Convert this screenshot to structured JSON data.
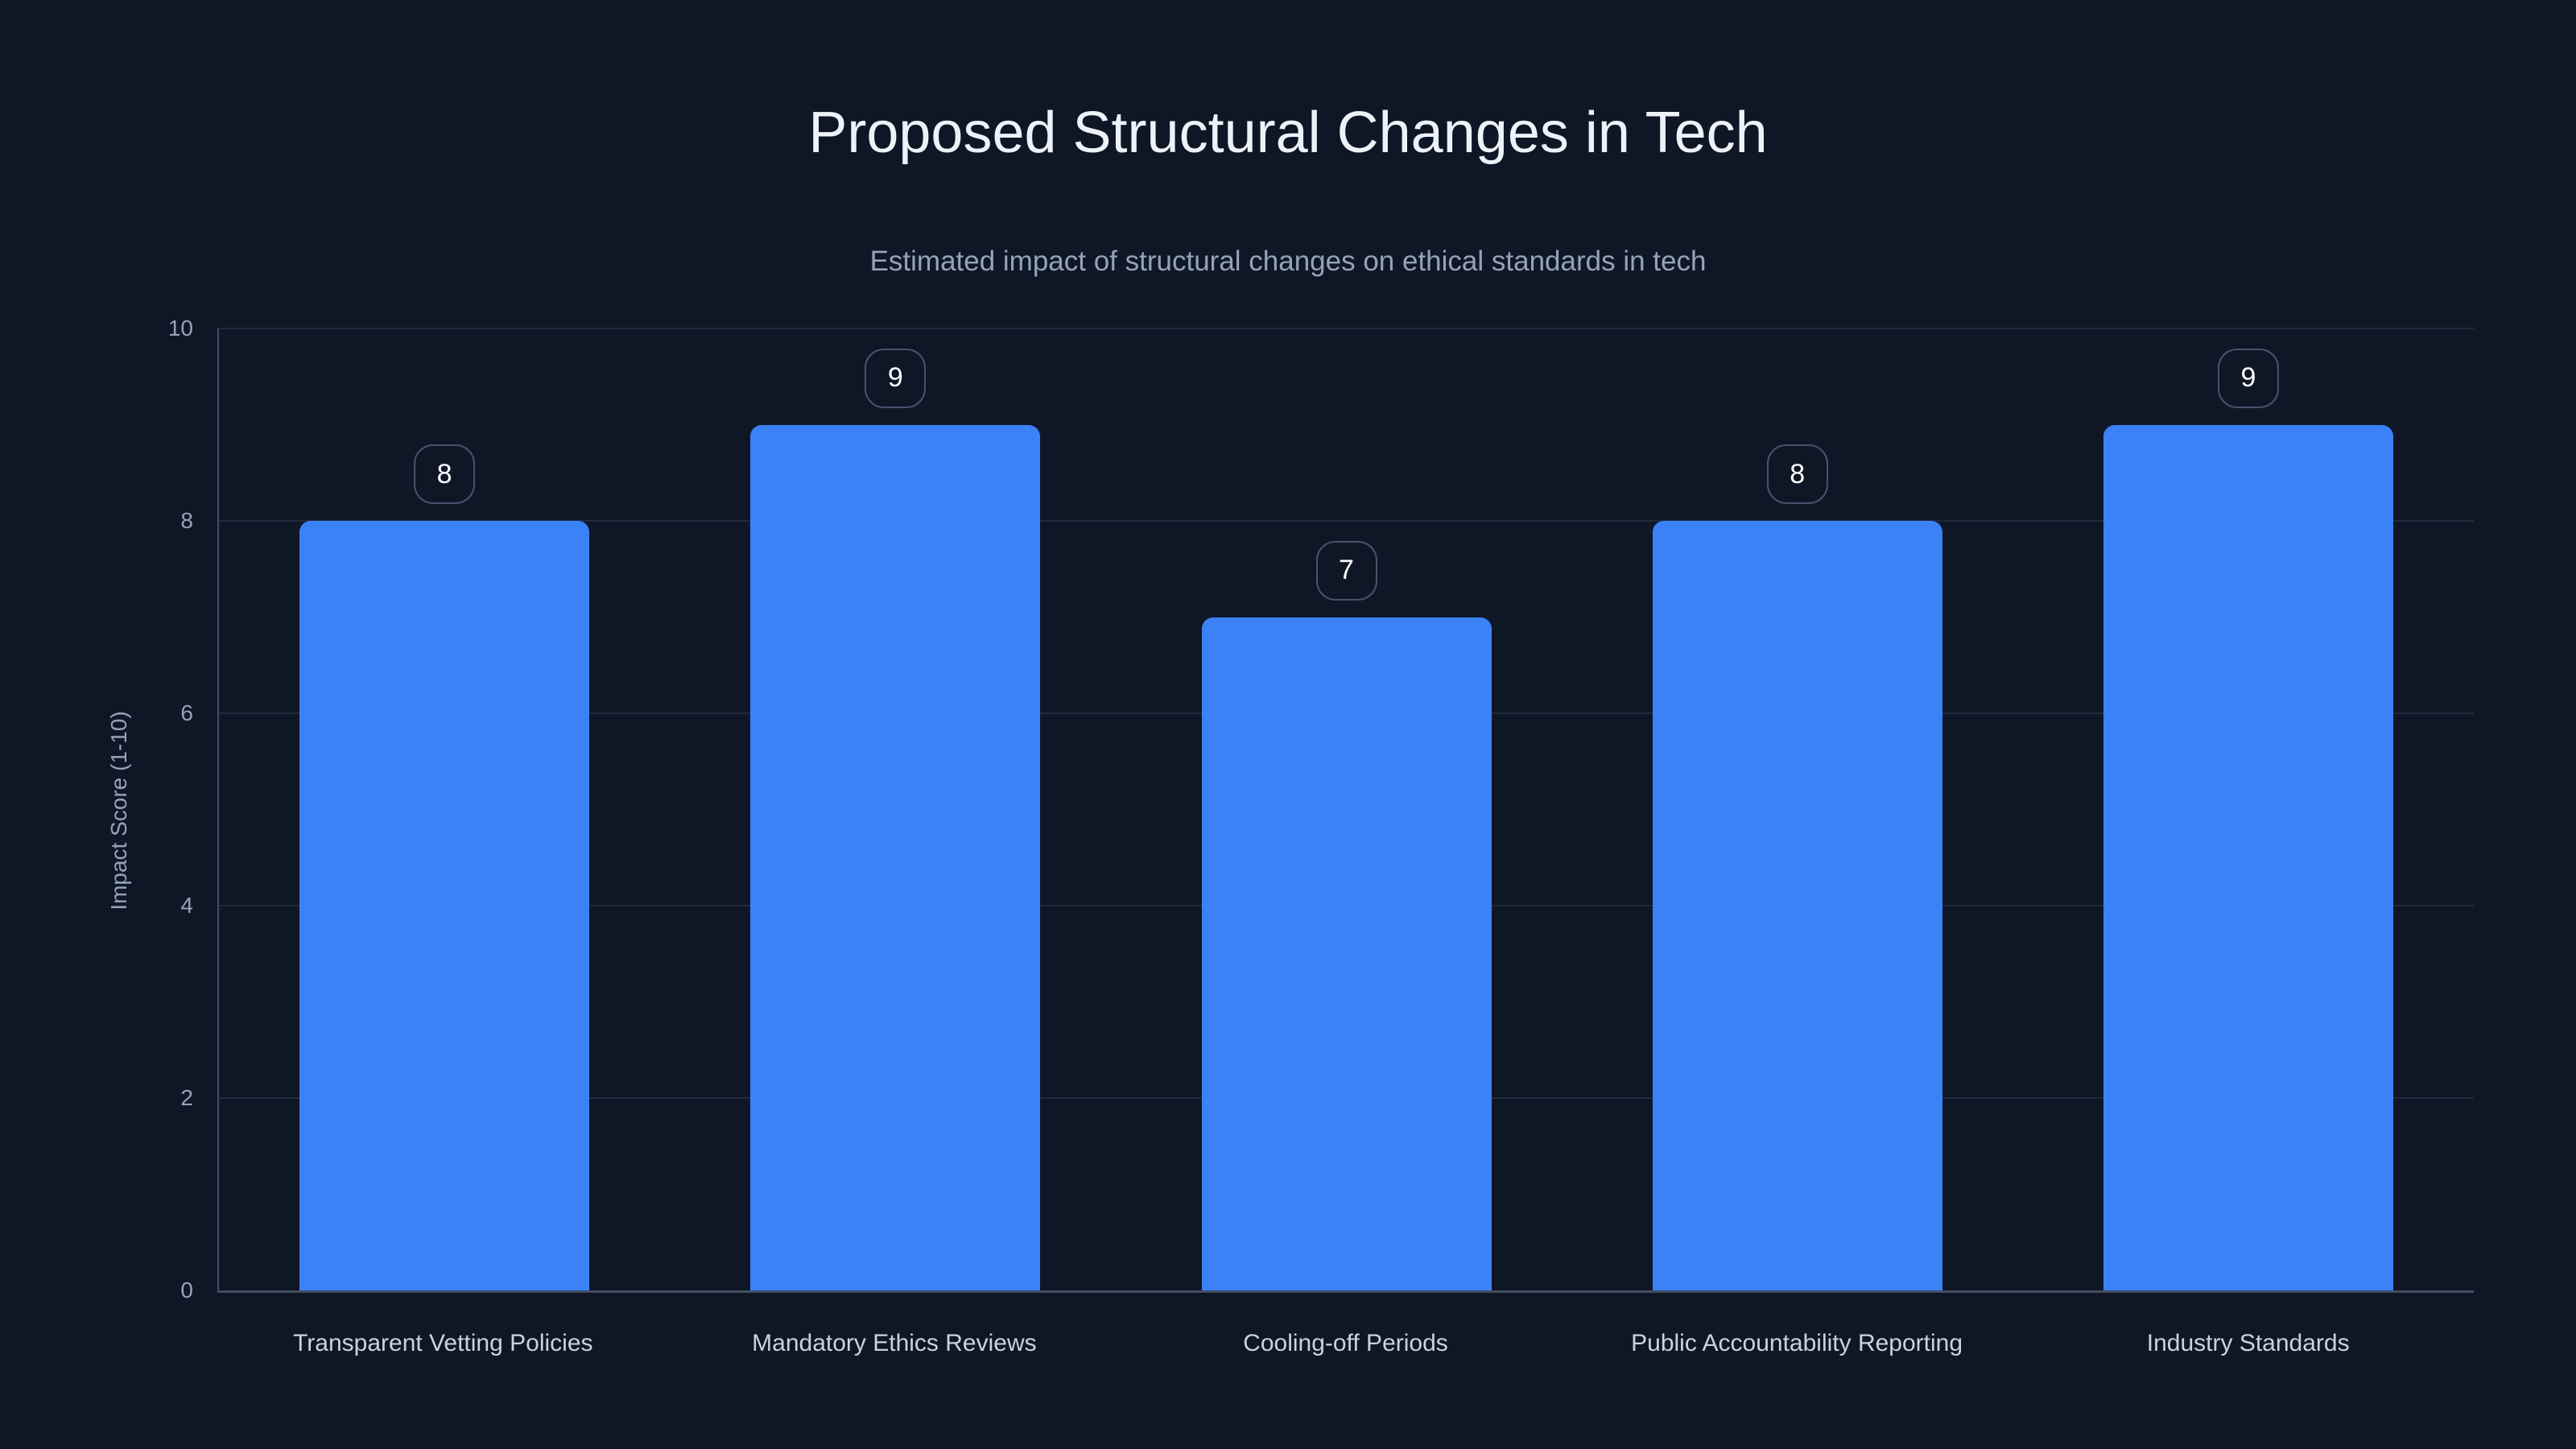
{
  "chart_data": {
    "type": "bar",
    "title": "Proposed Structural Changes in Tech",
    "subtitle": "Estimated impact of structural changes on ethical standards in tech",
    "categories": [
      "Transparent Vetting Policies",
      "Mandatory Ethics Reviews",
      "Cooling-off Periods",
      "Public Accountability Reporting",
      "Industry Standards"
    ],
    "values": [
      8,
      9,
      7,
      8,
      9
    ],
    "data_labels": [
      "8",
      "9",
      "7",
      "8",
      "9"
    ],
    "xlabel": "",
    "ylabel": "Impact Score (1-10)",
    "ylim": [
      0,
      10
    ],
    "yticks": [
      0,
      2,
      4,
      6,
      8,
      10
    ],
    "grid": "horizontal",
    "legend_position": "none",
    "colors": {
      "background": "#0f1727",
      "bar": "#3b82f6",
      "title_text": "#edf2f8",
      "subtitle_text": "#94a3b8",
      "tick_label": "#94a3b8",
      "category_label": "#c9d2de",
      "gridline": "rgba(148,163,184,0.14)",
      "axis_line": "rgba(148,163,184,0.40)",
      "badge_border": "#46536b",
      "badge_text": "#ffffff"
    }
  }
}
